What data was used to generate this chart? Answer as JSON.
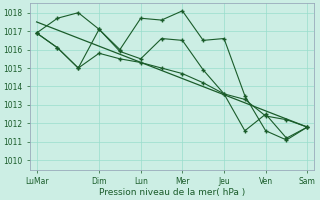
{
  "background_color": "#cceee4",
  "plot_bg_color": "#cceee4",
  "grid_color": "#99ddcc",
  "line_color": "#1a5c2a",
  "x_tick_labels": [
    "LuMar",
    "Dim",
    "Lun",
    "Mer",
    "Jeu",
    "Ven",
    "Sam"
  ],
  "x_tick_positions": [
    0,
    3,
    5,
    7,
    9,
    11,
    13
  ],
  "xlabel": "Pression niveau de la mer( hPa )",
  "ylim": [
    1009.5,
    1018.5
  ],
  "yticks": [
    1010,
    1011,
    1012,
    1013,
    1014,
    1015,
    1016,
    1017,
    1018
  ],
  "xlim": [
    -0.3,
    13.3
  ],
  "series1_x": [
    0,
    1,
    2,
    3,
    4,
    5,
    6,
    7,
    8,
    9,
    10,
    11,
    12,
    13
  ],
  "series1_y": [
    1016.9,
    1017.7,
    1018.0,
    1017.1,
    1016.0,
    1017.7,
    1017.6,
    1018.1,
    1016.5,
    1016.6,
    1013.5,
    1011.6,
    1011.1,
    1011.8
  ],
  "series2_x": [
    0,
    1,
    2,
    3,
    4,
    5,
    6,
    7,
    8,
    9,
    10,
    11,
    12,
    13
  ],
  "series2_y": [
    1016.9,
    1016.1,
    1015.0,
    1017.1,
    1015.9,
    1015.5,
    1016.6,
    1016.5,
    1014.9,
    1013.6,
    1011.6,
    1012.5,
    1011.2,
    1011.8
  ],
  "series3_x": [
    0,
    1,
    2,
    3,
    4,
    5,
    6,
    7,
    8,
    9,
    10,
    11,
    12,
    13
  ],
  "series3_y": [
    1016.9,
    1016.1,
    1015.0,
    1015.8,
    1015.5,
    1015.3,
    1015.0,
    1014.7,
    1014.2,
    1013.6,
    1013.3,
    1012.4,
    1012.2,
    1011.8
  ],
  "trend_x": [
    0,
    13
  ],
  "trend_y": [
    1017.5,
    1011.8
  ]
}
